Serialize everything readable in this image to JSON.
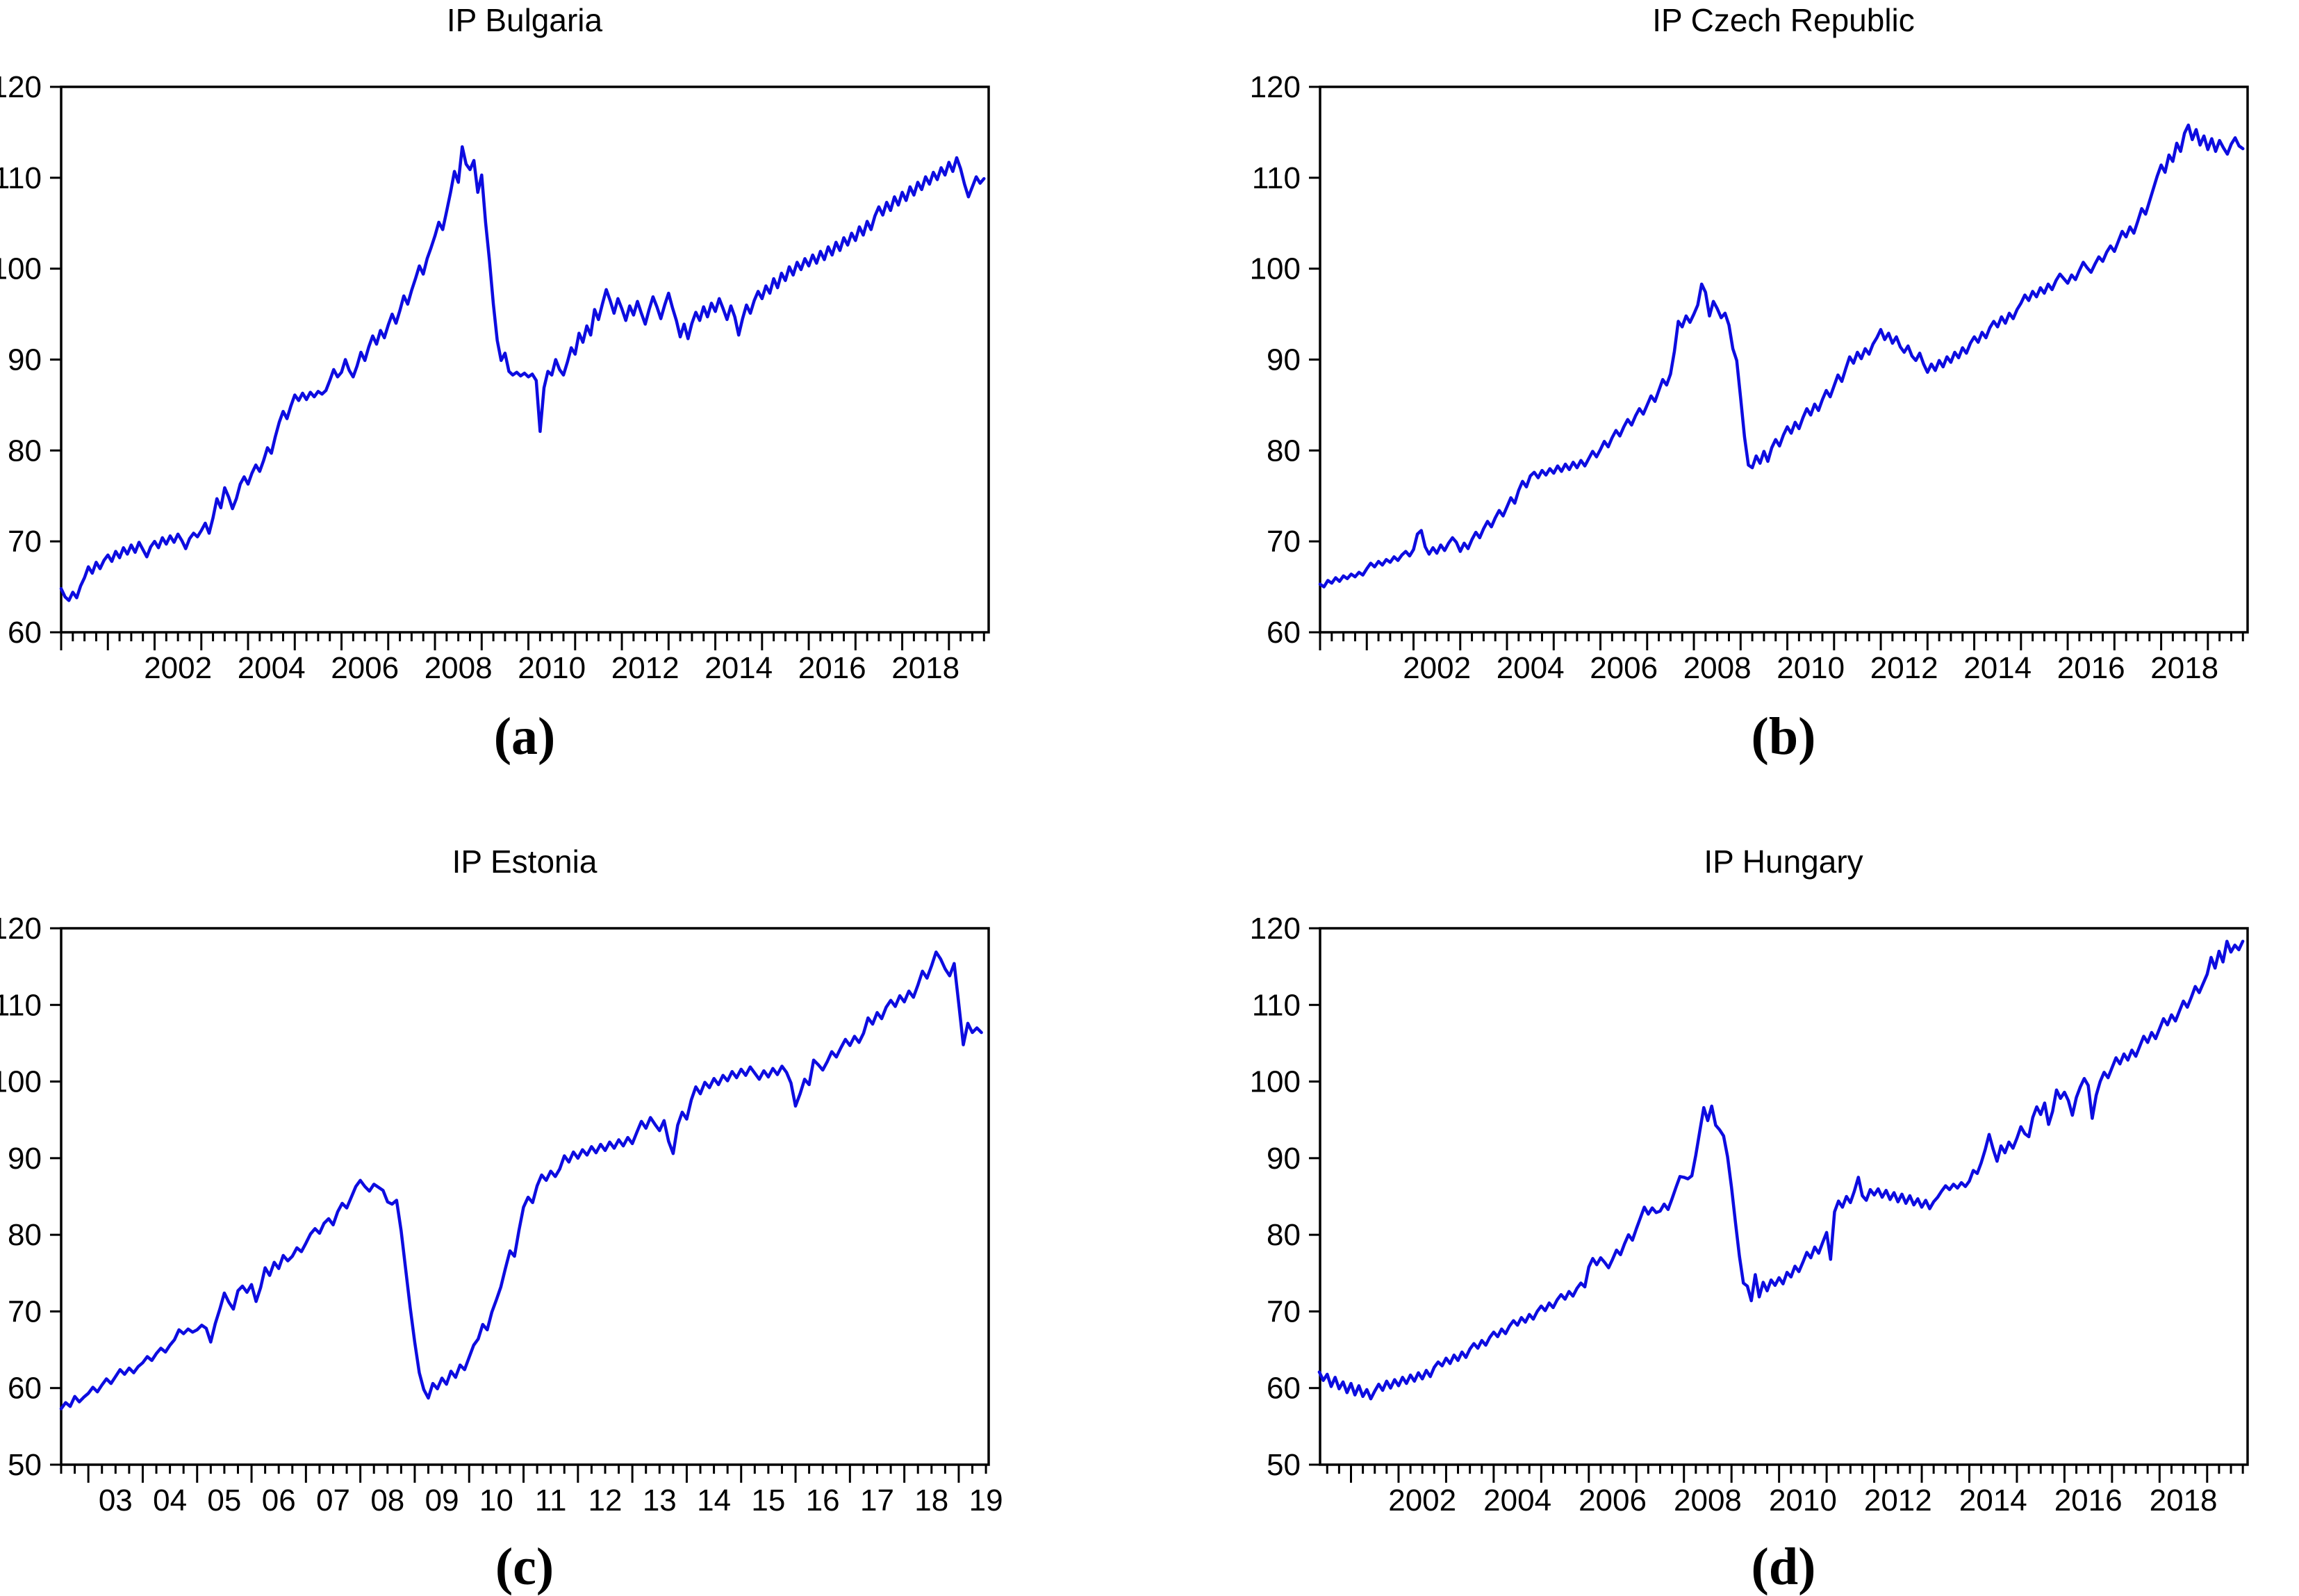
{
  "figure": {
    "background": "#ffffff",
    "line_color": "#0d0ce0",
    "axis_color": "#000000"
  },
  "chart_data": {
    "type": "line",
    "frequency": "monthly",
    "legend": "none",
    "grid": "off",
    "panels": [
      {
        "id": "bulgaria",
        "title": "IP Bulgaria",
        "caption": "(a)",
        "x0": 2000.0,
        "dx": 0.083333,
        "xlim": [
          2000.0,
          2019.85
        ],
        "ylim": [
          60,
          120
        ],
        "ytick_step": 10,
        "xlabel_start": 2002,
        "xlabel_step": 2,
        "xlabel_digits": 4,
        "values": [
          64.8,
          63.9,
          63.5,
          64.4,
          63.8,
          65.1,
          66.0,
          67.2,
          66.5,
          67.7,
          67.0,
          67.9,
          68.5,
          67.8,
          68.9,
          68.2,
          69.3,
          68.6,
          69.6,
          68.8,
          69.9,
          69.1,
          68.3,
          69.4,
          70.0,
          69.3,
          70.4,
          69.7,
          70.6,
          69.9,
          70.8,
          70.1,
          69.2,
          70.3,
          70.9,
          70.5,
          71.2,
          72.0,
          70.9,
          72.6,
          74.7,
          73.7,
          75.9,
          74.9,
          73.6,
          74.7,
          76.3,
          77.1,
          76.3,
          77.5,
          78.4,
          77.7,
          78.9,
          80.3,
          79.7,
          81.5,
          83.1,
          84.3,
          83.5,
          84.9,
          86.1,
          85.5,
          86.3,
          85.6,
          86.4,
          85.9,
          86.5,
          86.2,
          86.6,
          87.7,
          88.9,
          88.1,
          88.6,
          90.0,
          88.8,
          88.1,
          89.3,
          90.8,
          89.9,
          91.4,
          92.6,
          91.7,
          93.2,
          92.4,
          93.8,
          95.0,
          94.0,
          95.4,
          97.0,
          96.1,
          97.6,
          98.9,
          100.3,
          99.4,
          101.1,
          102.3,
          103.6,
          105.1,
          104.3,
          106.3,
          108.4,
          110.7,
          109.5,
          113.4,
          111.5,
          110.9,
          111.9,
          108.4,
          110.3,
          105.1,
          100.9,
          96.1,
          92.1,
          89.9,
          90.7,
          88.7,
          88.3,
          88.6,
          88.2,
          88.5,
          88.1,
          88.4,
          87.7,
          82.1,
          86.9,
          88.7,
          88.3,
          90.0,
          88.9,
          88.3,
          89.7,
          91.3,
          90.6,
          92.9,
          91.9,
          93.7,
          92.7,
          95.5,
          94.4,
          96.1,
          97.7,
          96.5,
          95.1,
          96.7,
          95.6,
          94.3,
          95.9,
          94.9,
          96.4,
          95.1,
          93.9,
          95.5,
          96.9,
          95.8,
          94.5,
          96.0,
          97.3,
          95.7,
          94.3,
          92.5,
          93.9,
          92.3,
          94.0,
          95.2,
          94.3,
          95.8,
          94.7,
          96.2,
          95.3,
          96.7,
          95.6,
          94.4,
          95.9,
          94.7,
          92.7,
          94.5,
          96.0,
          95.1,
          96.5,
          97.5,
          96.7,
          98.1,
          97.3,
          98.9,
          97.9,
          99.5,
          98.7,
          100.2,
          99.3,
          100.7,
          99.9,
          101.1,
          100.3,
          101.5,
          100.6,
          101.9,
          101.0,
          102.4,
          101.5,
          102.9,
          102.0,
          103.4,
          102.6,
          103.9,
          103.1,
          104.6,
          103.7,
          105.2,
          104.3,
          105.8,
          106.8,
          105.9,
          107.3,
          106.4,
          107.9,
          107.0,
          108.4,
          107.5,
          109.0,
          108.1,
          109.5,
          108.7,
          110.1,
          109.3,
          110.6,
          109.8,
          111.1,
          110.3,
          111.7,
          110.7,
          112.2,
          111.0,
          109.3,
          107.9,
          109.0,
          110.1,
          109.4,
          109.9
        ]
      },
      {
        "id": "czech-republic",
        "title": "IP Czech Republic",
        "caption": "(b)",
        "x0": 2000.0,
        "dx": 0.083333,
        "xlim": [
          2000.0,
          2019.85
        ],
        "ylim": [
          60,
          120
        ],
        "ytick_step": 10,
        "xlabel_start": 2002,
        "xlabel_step": 2,
        "xlabel_digits": 4,
        "values": [
          65.3,
          65.0,
          65.7,
          65.4,
          66.0,
          65.6,
          66.2,
          65.9,
          66.4,
          66.1,
          66.6,
          66.3,
          67.0,
          67.6,
          67.2,
          67.8,
          67.4,
          68.0,
          67.7,
          68.3,
          67.9,
          68.5,
          68.9,
          68.4,
          69.1,
          70.8,
          71.2,
          69.4,
          68.6,
          69.3,
          68.7,
          69.6,
          69.0,
          69.8,
          70.4,
          69.9,
          68.9,
          69.8,
          69.2,
          70.2,
          71.0,
          70.4,
          71.4,
          72.2,
          71.6,
          72.6,
          73.4,
          72.8,
          73.8,
          74.8,
          74.2,
          75.6,
          76.6,
          76.0,
          77.2,
          77.6,
          77.0,
          77.8,
          77.3,
          78.0,
          77.5,
          78.3,
          77.7,
          78.5,
          77.9,
          78.7,
          78.1,
          78.9,
          78.3,
          79.1,
          79.9,
          79.3,
          80.1,
          81.0,
          80.4,
          81.4,
          82.2,
          81.6,
          82.6,
          83.4,
          82.8,
          83.8,
          84.6,
          84.0,
          85.0,
          86.0,
          85.4,
          86.6,
          87.8,
          87.2,
          88.4,
          90.9,
          94.2,
          93.6,
          94.8,
          94.1,
          95.0,
          96.0,
          98.3,
          97.4,
          94.8,
          96.4,
          95.6,
          94.6,
          95.1,
          93.8,
          91.2,
          89.9,
          85.8,
          81.5,
          78.4,
          78.1,
          79.4,
          78.6,
          79.9,
          78.8,
          80.3,
          81.2,
          80.5,
          81.7,
          82.6,
          81.9,
          83.1,
          82.4,
          83.6,
          84.6,
          83.9,
          85.1,
          84.4,
          85.6,
          86.6,
          85.9,
          87.1,
          88.3,
          87.6,
          89.0,
          90.3,
          89.6,
          90.8,
          90.1,
          91.2,
          90.6,
          91.7,
          92.4,
          93.3,
          92.2,
          92.9,
          91.8,
          92.5,
          91.4,
          90.8,
          91.5,
          90.4,
          89.9,
          90.7,
          89.5,
          88.6,
          89.5,
          88.8,
          89.9,
          89.2,
          90.3,
          89.7,
          90.8,
          90.2,
          91.3,
          90.7,
          91.8,
          92.5,
          91.9,
          93.0,
          92.4,
          93.5,
          94.2,
          93.6,
          94.7,
          94.0,
          95.1,
          94.5,
          95.5,
          96.2,
          97.1,
          96.5,
          97.5,
          96.9,
          97.9,
          97.3,
          98.3,
          97.7,
          98.7,
          99.4,
          98.9,
          98.4,
          99.3,
          98.8,
          99.8,
          100.7,
          100.1,
          99.6,
          100.5,
          101.3,
          100.8,
          101.8,
          102.5,
          101.9,
          103.0,
          104.1,
          103.5,
          104.6,
          103.9,
          105.2,
          106.6,
          106.0,
          107.4,
          108.8,
          110.2,
          111.4,
          110.6,
          112.5,
          111.8,
          113.8,
          112.9,
          114.9,
          115.8,
          114.2,
          115.3,
          113.6,
          114.6,
          113.1,
          114.3,
          112.9,
          114.1,
          113.3,
          112.6,
          113.7,
          114.4,
          113.5,
          113.2
        ]
      },
      {
        "id": "estonia",
        "title": "IP Estonia",
        "caption": "(c)",
        "x0": 2002.5,
        "dx": 0.083333,
        "xlim": [
          2002.5,
          2019.55
        ],
        "ylim": [
          50,
          120
        ],
        "ytick_step": 10,
        "xlabel_start": 2003,
        "xlabel_step": 1,
        "xlabel_digits": 2,
        "values": [
          57.3,
          58.1,
          57.6,
          58.9,
          58.2,
          58.8,
          59.3,
          60.1,
          59.5,
          60.4,
          61.2,
          60.6,
          61.5,
          62.4,
          61.8,
          62.6,
          62.0,
          62.8,
          63.3,
          64.1,
          63.6,
          64.5,
          65.2,
          64.7,
          65.6,
          66.3,
          67.6,
          67.1,
          67.7,
          67.3,
          67.6,
          68.2,
          67.8,
          66.0,
          68.4,
          70.3,
          72.4,
          71.2,
          70.3,
          72.7,
          73.3,
          72.5,
          73.5,
          71.3,
          73.1,
          75.7,
          74.7,
          76.4,
          75.6,
          77.3,
          76.6,
          77.2,
          78.3,
          77.8,
          78.9,
          80.1,
          80.8,
          80.2,
          81.5,
          82.1,
          81.3,
          83.0,
          84.1,
          83.5,
          84.9,
          86.3,
          87.1,
          86.3,
          85.7,
          86.6,
          86.2,
          85.8,
          84.3,
          84.0,
          84.5,
          80.5,
          75.5,
          70.5,
          66.0,
          62.0,
          59.8,
          58.7,
          60.6,
          59.9,
          61.3,
          60.5,
          62.2,
          61.4,
          63.0,
          62.4,
          64.0,
          65.6,
          66.4,
          68.3,
          67.6,
          69.9,
          71.5,
          73.2,
          75.6,
          77.9,
          77.2,
          80.6,
          83.6,
          84.9,
          84.2,
          86.4,
          87.8,
          87.1,
          88.3,
          87.6,
          88.6,
          90.3,
          89.5,
          90.8,
          90.0,
          91.1,
          90.4,
          91.5,
          90.7,
          91.8,
          91.0,
          92.1,
          91.3,
          92.4,
          91.6,
          92.7,
          91.9,
          93.4,
          94.8,
          93.9,
          95.3,
          94.4,
          93.6,
          94.9,
          92.2,
          90.6,
          94.3,
          96.0,
          95.1,
          97.6,
          99.3,
          98.4,
          99.9,
          99.2,
          100.4,
          99.6,
          100.8,
          100.1,
          101.3,
          100.5,
          101.6,
          100.8,
          101.9,
          101.1,
          100.3,
          101.4,
          100.6,
          101.7,
          100.9,
          102.0,
          101.2,
          99.8,
          96.8,
          98.4,
          100.3,
          99.6,
          102.8,
          102.2,
          101.5,
          102.6,
          103.9,
          103.2,
          104.4,
          105.5,
          104.7,
          105.9,
          105.1,
          106.3,
          108.3,
          107.5,
          109.0,
          108.2,
          109.7,
          110.6,
          109.8,
          111.2,
          110.4,
          111.8,
          111.0,
          112.6,
          114.4,
          113.5,
          115.1,
          116.9,
          116.0,
          114.7,
          113.8,
          115.4,
          110.2,
          104.8,
          107.6,
          106.4,
          107.0,
          106.4
        ]
      },
      {
        "id": "hungary",
        "title": "IP Hungary",
        "caption": "(d)",
        "x0": 2000.3333,
        "dx": 0.083333,
        "xlim": [
          2000.35,
          2019.85
        ],
        "ylim": [
          50,
          120
        ],
        "ytick_step": 10,
        "xlabel_start": 2002,
        "xlabel_step": 2,
        "xlabel_digits": 4,
        "values": [
          62.1,
          61.0,
          61.8,
          60.2,
          61.4,
          59.9,
          60.8,
          59.4,
          60.6,
          59.1,
          60.3,
          58.9,
          59.8,
          58.6,
          59.6,
          60.5,
          59.7,
          60.9,
          60.0,
          61.1,
          60.3,
          61.4,
          60.6,
          61.7,
          60.9,
          62.0,
          61.2,
          62.3,
          61.5,
          62.7,
          63.4,
          62.9,
          63.9,
          63.2,
          64.3,
          63.6,
          64.7,
          64.0,
          65.1,
          65.8,
          65.2,
          66.2,
          65.6,
          66.6,
          67.3,
          66.7,
          67.7,
          67.1,
          68.1,
          68.8,
          68.2,
          69.2,
          68.6,
          69.6,
          69.0,
          70.0,
          70.7,
          70.1,
          71.1,
          70.5,
          71.5,
          72.2,
          71.6,
          72.6,
          72.0,
          73.0,
          73.7,
          73.2,
          75.8,
          76.9,
          76.1,
          77.0,
          76.4,
          75.7,
          76.8,
          78.0,
          77.4,
          78.8,
          80.0,
          79.3,
          80.8,
          82.2,
          83.6,
          82.7,
          83.5,
          82.9,
          83.1,
          84.0,
          83.3,
          84.7,
          86.2,
          87.6,
          87.5,
          87.3,
          87.7,
          90.4,
          93.5,
          96.6,
          94.9,
          96.8,
          94.3,
          93.7,
          92.9,
          90.2,
          86.2,
          81.6,
          77.2,
          73.7,
          73.3,
          71.4,
          74.8,
          71.9,
          73.8,
          72.7,
          74.1,
          73.4,
          74.4,
          73.6,
          75.1,
          74.5,
          75.9,
          75.2,
          76.4,
          77.7,
          77.0,
          78.4,
          77.6,
          79.0,
          80.3,
          76.8,
          83.0,
          84.4,
          83.6,
          85.0,
          84.2,
          85.7,
          87.5,
          85.1,
          84.5,
          85.9,
          85.2,
          86.0,
          84.9,
          85.8,
          84.6,
          85.5,
          84.3,
          85.3,
          84.1,
          85.1,
          83.9,
          84.7,
          83.6,
          84.5,
          83.4,
          84.3,
          84.9,
          85.7,
          86.4,
          85.9,
          86.6,
          86.1,
          86.8,
          86.3,
          87.0,
          88.4,
          88.0,
          89.4,
          91.1,
          93.1,
          91.2,
          89.6,
          91.6,
          90.7,
          92.1,
          91.3,
          92.6,
          94.1,
          93.2,
          92.8,
          95.3,
          96.7,
          95.7,
          97.2,
          94.4,
          96.1,
          98.9,
          97.8,
          98.6,
          97.5,
          95.6,
          97.9,
          99.3,
          100.4,
          99.5,
          95.2,
          98.2,
          100.0,
          101.2,
          100.5,
          101.8,
          103.1,
          102.3,
          103.6,
          102.8,
          104.1,
          103.3,
          104.6,
          105.9,
          105.1,
          106.4,
          105.6,
          106.9,
          108.2,
          107.4,
          108.7,
          107.9,
          109.2,
          110.5,
          109.7,
          111.0,
          112.4,
          111.6,
          112.8,
          114.0,
          116.2,
          114.8,
          117.0,
          115.6,
          118.3,
          116.9,
          117.8,
          117.2,
          118.3
        ]
      }
    ]
  }
}
